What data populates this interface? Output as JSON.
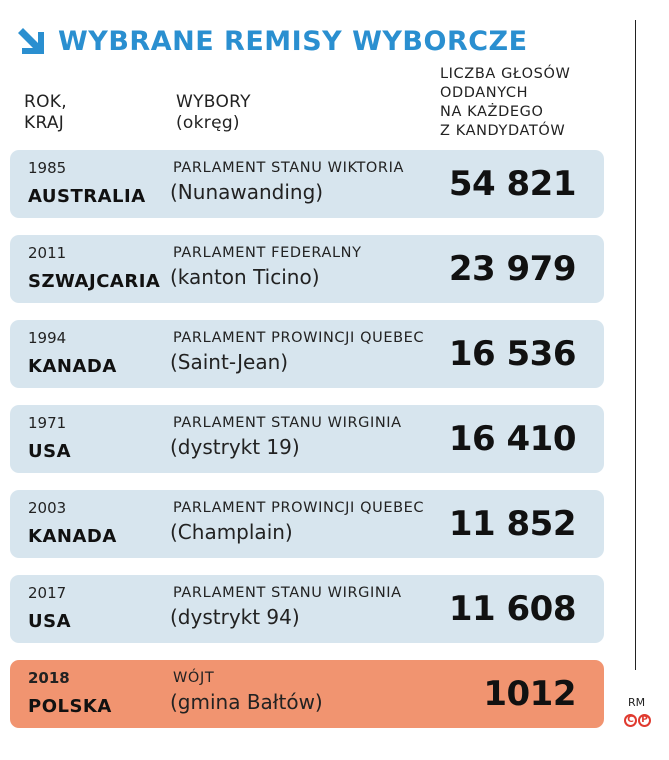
{
  "title": "WYBRANE REMISY WYBORCZE",
  "headers": {
    "col1": [
      "ROK,",
      "KRAJ"
    ],
    "col2": [
      "WYBORY",
      "(okręg)"
    ],
    "col3": [
      "LICZBA GŁOSÓW",
      "ODDANYCH",
      "NA KAŻDEGO",
      "Z KANDYDATÓW"
    ]
  },
  "rows": [
    {
      "year": "1985",
      "country": "AUSTRALIA",
      "election": "PARLAMENT STANU WIKTORIA",
      "district": "(Nunawanding)",
      "votes": "54 821"
    },
    {
      "year": "2011",
      "country": "SZWAJCARIA",
      "election": "PARLAMENT FEDERALNY",
      "district": "(kanton Ticino)",
      "votes": "23 979"
    },
    {
      "year": "1994",
      "country": "KANADA",
      "election": "PARLAMENT PROWINCJI QUEBEC",
      "district": "(Saint-Jean)",
      "votes": "16 536"
    },
    {
      "year": "1971",
      "country": "USA",
      "election": "PARLAMENT STANU WIRGINIA",
      "district": "(dystrykt 19)",
      "votes": "16 410"
    },
    {
      "year": "2003",
      "country": "KANADA",
      "election": "PARLAMENT PROWINCJI QUEBEC",
      "district": "(Champlain)",
      "votes": "11 852"
    },
    {
      "year": "2017",
      "country": "USA",
      "election": "PARLAMENT STANU WIRGINIA",
      "district": "(dystrykt 94)",
      "votes": "11 608"
    },
    {
      "year": "2018",
      "country": "POLSKA",
      "election": "WÓJT",
      "district": "(gmina Bałtów)",
      "votes": "1012"
    }
  ],
  "credit": "RM",
  "copyright": [
    "C",
    "P"
  ],
  "colors": {
    "accent": "#2a8fd0",
    "row": "#d7e5ee",
    "highlight": "#f19470"
  },
  "icon": "arrow-down-right-icon"
}
